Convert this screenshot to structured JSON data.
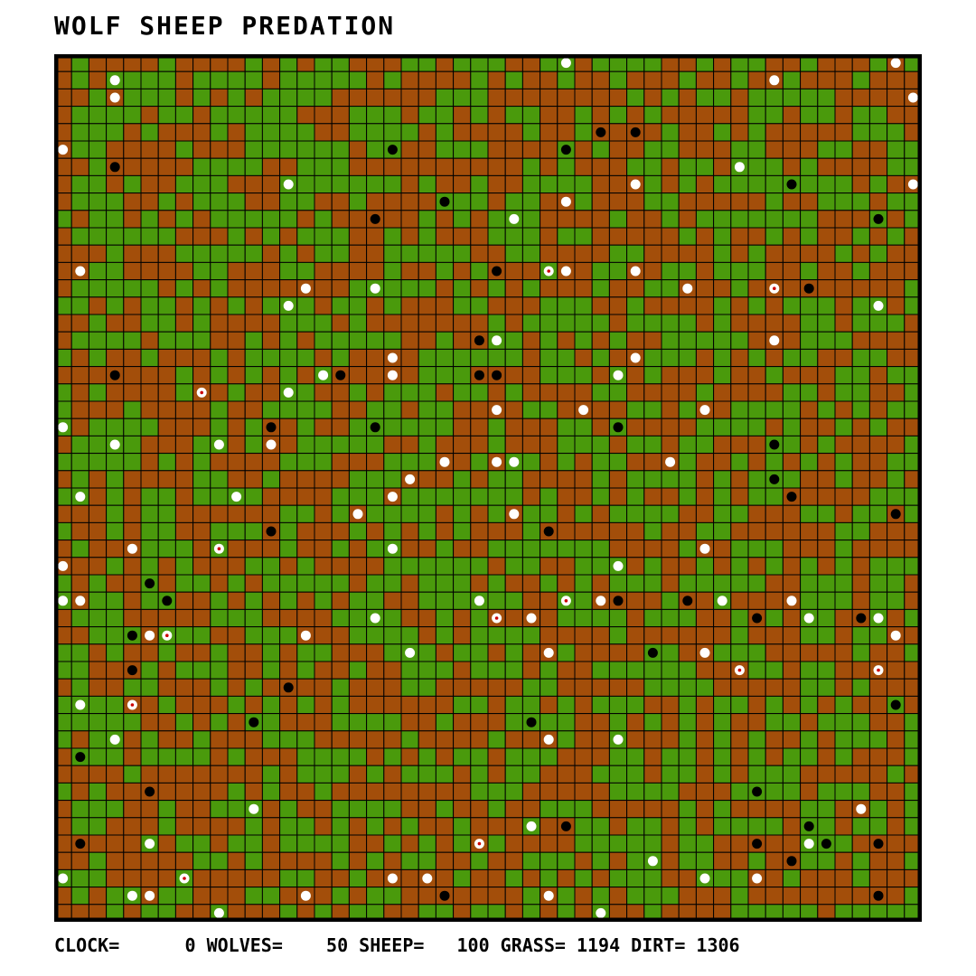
{
  "title": "WOLF SHEEP PREDATION",
  "status_line": "CLOCK=      0 WOLVES=    50 SHEEP=   100 GRASS= 1194 DIRT= 1306",
  "colors": {
    "grass": "#4a9a0c",
    "dirt": "#a34e0a",
    "grid_line": "#000000",
    "sheep": "#ffffff",
    "wolf": "#000000",
    "sheep_marker_center": "#cc0000"
  },
  "grid": {
    "columns": 50,
    "rows": 50
  }
}
